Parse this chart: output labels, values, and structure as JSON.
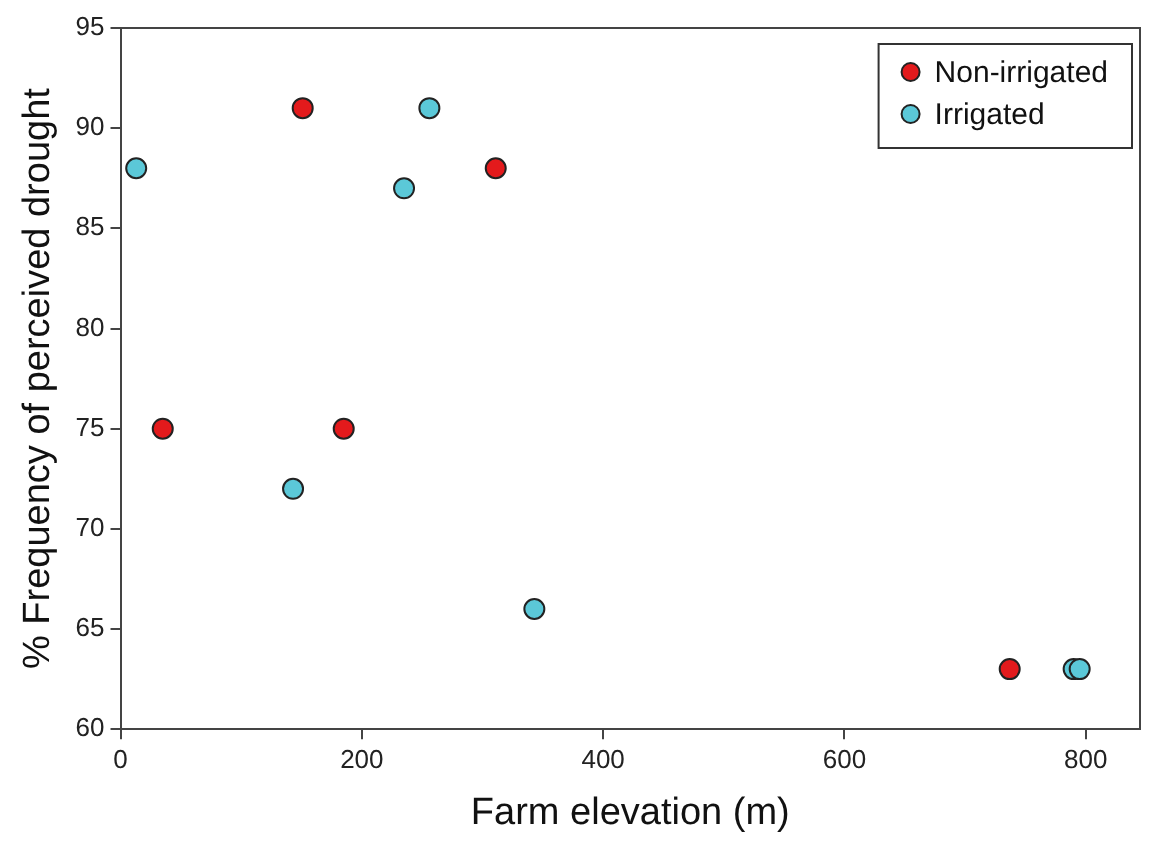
{
  "chart_data": {
    "type": "scatter",
    "xlabel": "Farm elevation (m)",
    "ylabel": "% Frequency of perceived drought",
    "xlim": [
      0,
      845
    ],
    "xticks": [
      0,
      200,
      400,
      600,
      800
    ],
    "ylim": [
      60,
      95
    ],
    "yticks": [
      60,
      65,
      70,
      75,
      80,
      85,
      90,
      95
    ],
    "grid": false,
    "legend": "top right",
    "marker": "circle",
    "series": [
      {
        "name": "Non-irrigated",
        "color": "#e31a1c",
        "x": [
          35,
          151,
          185,
          311,
          737
        ],
        "values": [
          75,
          91,
          75,
          88,
          63
        ]
      },
      {
        "name": "Irrigated",
        "color": "#5bc8d8",
        "x": [
          13,
          143,
          235,
          256,
          343,
          790,
          795
        ],
        "values": [
          88,
          72,
          87,
          91,
          66,
          63,
          63
        ]
      }
    ]
  }
}
